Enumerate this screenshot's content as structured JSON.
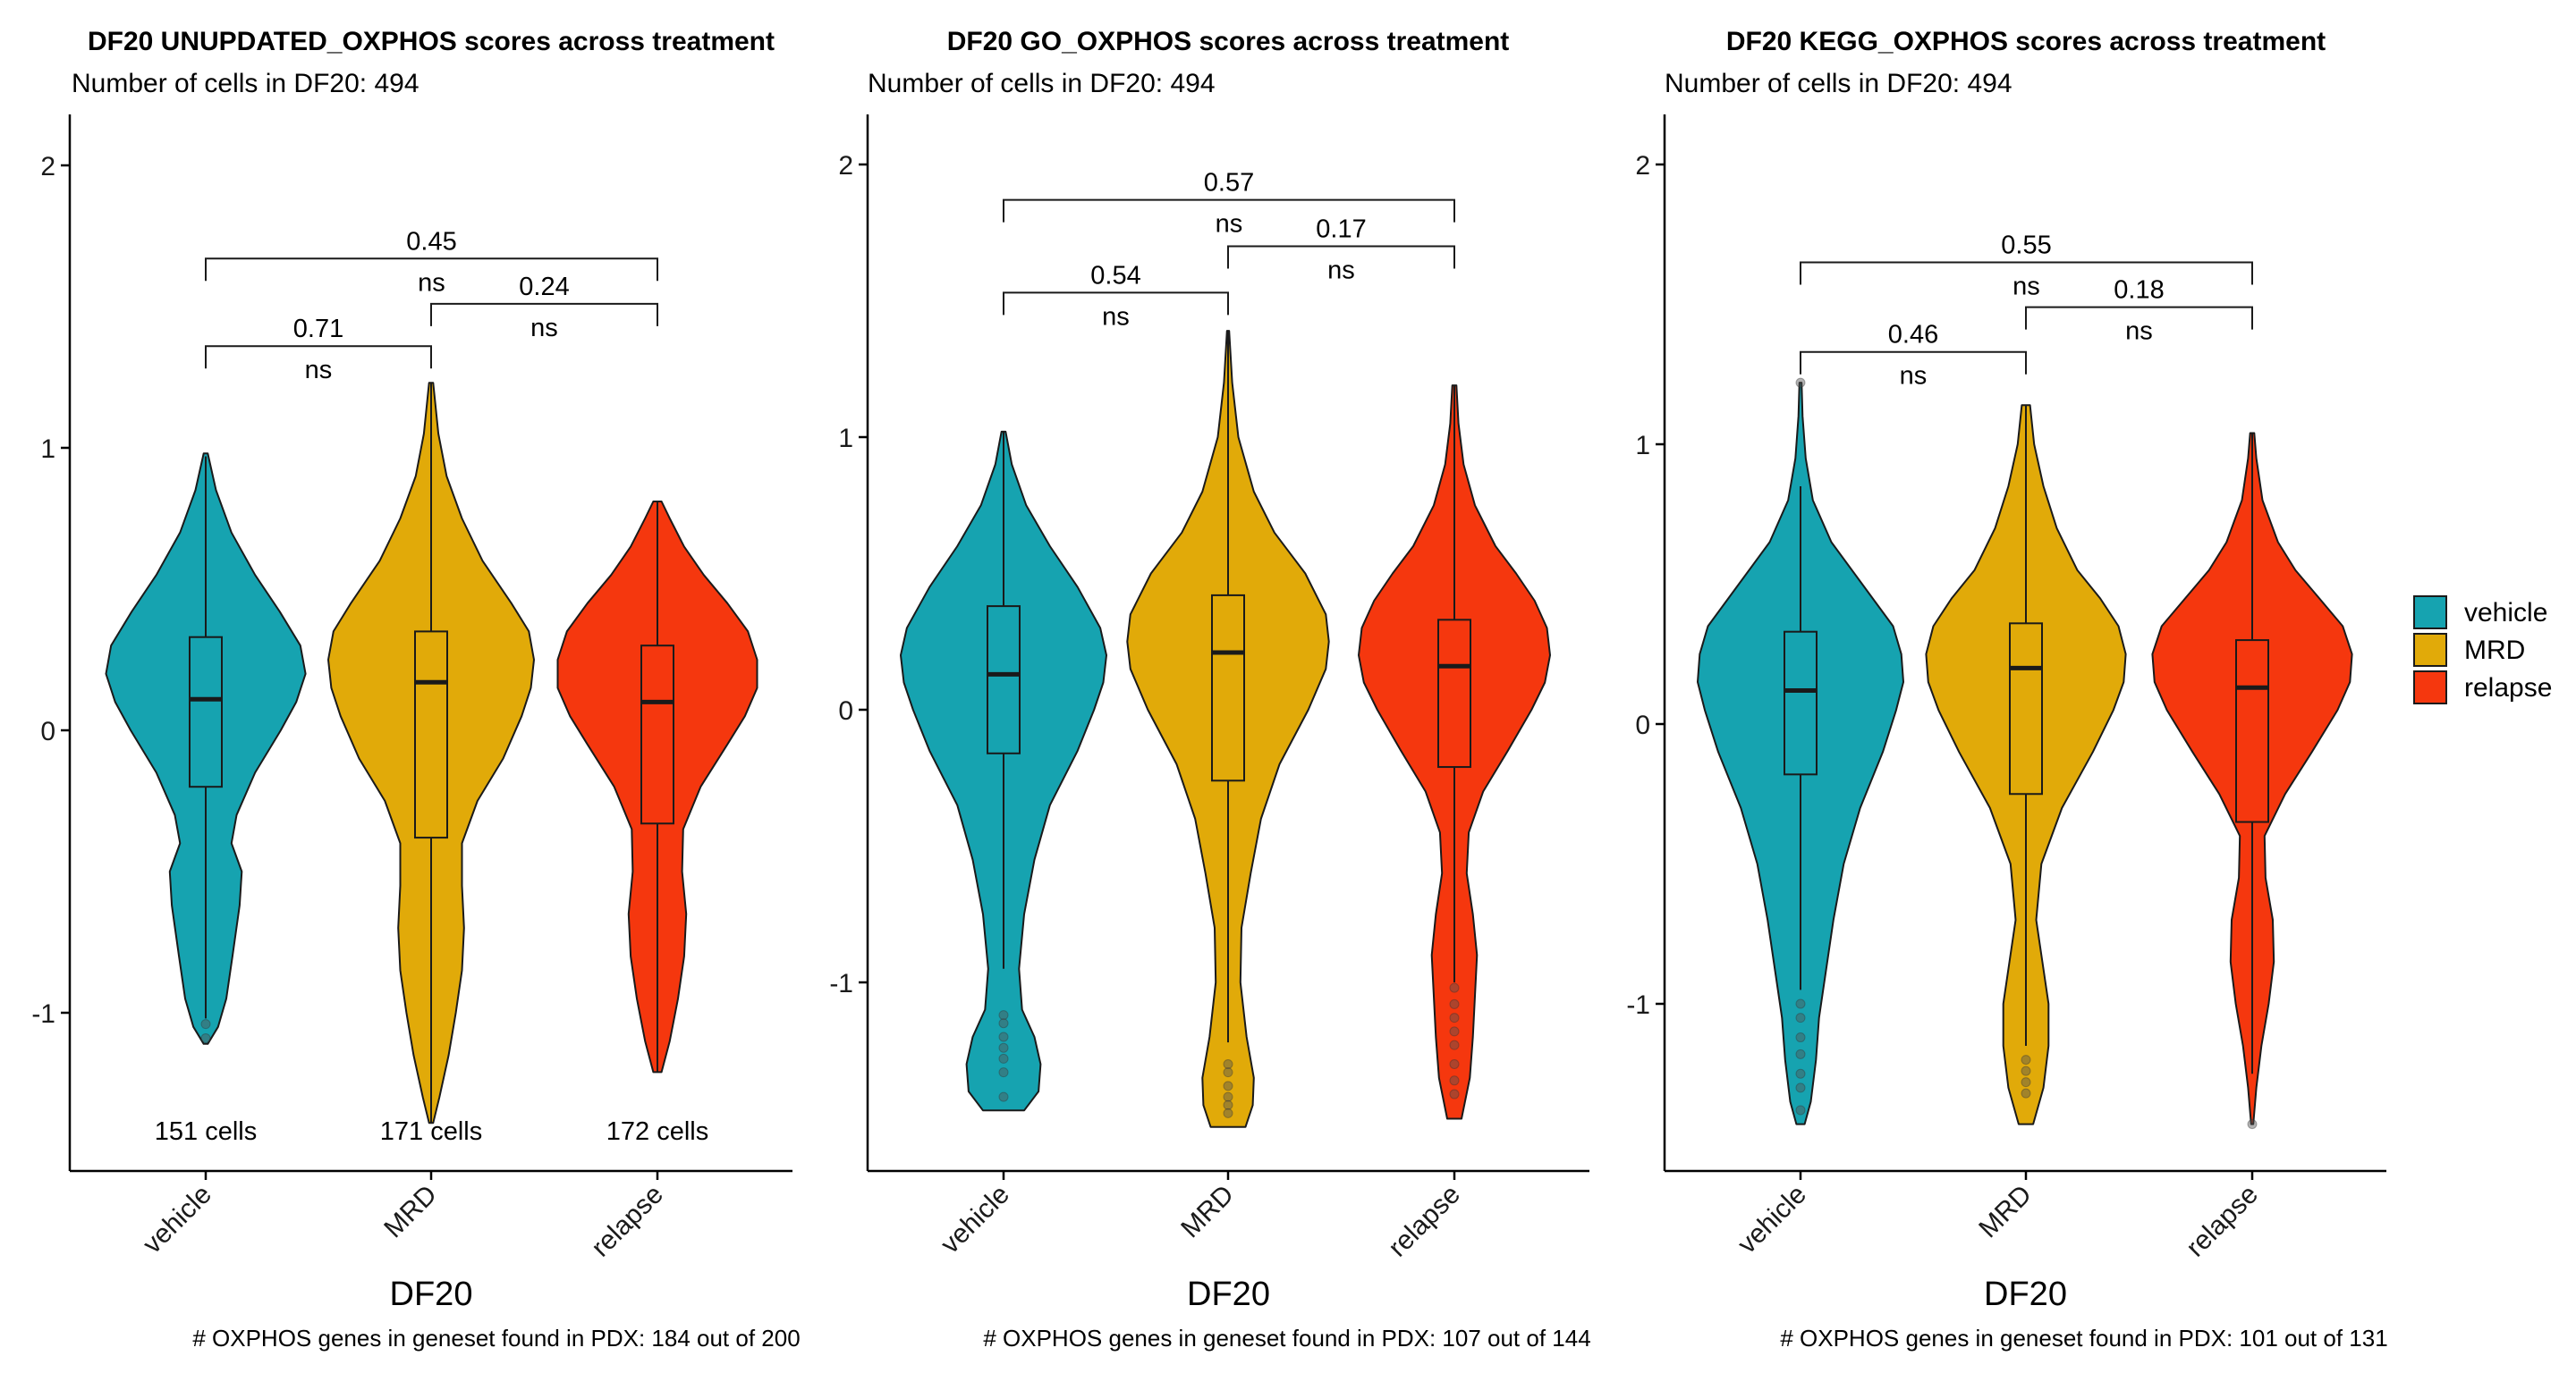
{
  "chart_data": [
    {
      "type": "violin",
      "title": "DF20 UNUPDATED_OXPHOS scores across treatment",
      "subtitle": "Number of cells in DF20: 494",
      "xlabel": "DF20",
      "ylabel": "",
      "caption": "# OXPHOS genes in geneset found in PDX: 184 out of 200",
      "ylim": [
        -1.55,
        2.2
      ],
      "yticks": [
        -1,
        0,
        1,
        2
      ],
      "categories": [
        "vehicle",
        "MRD",
        "relapse"
      ],
      "cell_labels": [
        "151 cells",
        "171 cells",
        "172 cells"
      ],
      "groups": [
        {
          "name": "vehicle",
          "min": -1.11,
          "max": 0.98,
          "q1": -0.2,
          "median": 0.11,
          "q3": 0.33,
          "wlo": -1.02,
          "whi": 0.97,
          "outliers": [
            -1.04,
            -1.09
          ],
          "density": [
            [
              -1.11,
              0.02
            ],
            [
              -1.05,
              0.12
            ],
            [
              -0.95,
              0.2
            ],
            [
              -0.8,
              0.26
            ],
            [
              -0.62,
              0.33
            ],
            [
              -0.5,
              0.35
            ],
            [
              -0.4,
              0.25
            ],
            [
              -0.3,
              0.3
            ],
            [
              -0.15,
              0.48
            ],
            [
              0.0,
              0.73
            ],
            [
              0.1,
              0.88
            ],
            [
              0.2,
              0.97
            ],
            [
              0.3,
              0.92
            ],
            [
              0.42,
              0.72
            ],
            [
              0.55,
              0.48
            ],
            [
              0.7,
              0.25
            ],
            [
              0.85,
              0.1
            ],
            [
              0.98,
              0.02
            ]
          ]
        },
        {
          "name": "MRD",
          "min": -1.39,
          "max": 1.23,
          "q1": -0.38,
          "median": 0.17,
          "q3": 0.35,
          "wlo": -1.39,
          "whi": 1.23,
          "outliers": [],
          "density": [
            [
              -1.39,
              0.02
            ],
            [
              -1.3,
              0.08
            ],
            [
              -1.15,
              0.17
            ],
            [
              -1.0,
              0.24
            ],
            [
              -0.85,
              0.3
            ],
            [
              -0.7,
              0.32
            ],
            [
              -0.55,
              0.3
            ],
            [
              -0.4,
              0.3
            ],
            [
              -0.25,
              0.45
            ],
            [
              -0.1,
              0.7
            ],
            [
              0.05,
              0.88
            ],
            [
              0.15,
              0.97
            ],
            [
              0.25,
              1.0
            ],
            [
              0.35,
              0.95
            ],
            [
              0.45,
              0.78
            ],
            [
              0.6,
              0.5
            ],
            [
              0.75,
              0.3
            ],
            [
              0.9,
              0.15
            ],
            [
              1.05,
              0.07
            ],
            [
              1.23,
              0.02
            ]
          ]
        },
        {
          "name": "relapse",
          "min": -1.21,
          "max": 0.81,
          "q1": -0.33,
          "median": 0.1,
          "q3": 0.3,
          "wlo": -1.21,
          "whi": 0.81,
          "outliers": [],
          "density": [
            [
              -1.21,
              0.04
            ],
            [
              -1.1,
              0.12
            ],
            [
              -0.95,
              0.2
            ],
            [
              -0.8,
              0.26
            ],
            [
              -0.65,
              0.28
            ],
            [
              -0.5,
              0.24
            ],
            [
              -0.35,
              0.25
            ],
            [
              -0.2,
              0.42
            ],
            [
              -0.05,
              0.68
            ],
            [
              0.05,
              0.85
            ],
            [
              0.15,
              0.97
            ],
            [
              0.25,
              0.97
            ],
            [
              0.35,
              0.88
            ],
            [
              0.45,
              0.68
            ],
            [
              0.55,
              0.45
            ],
            [
              0.65,
              0.26
            ],
            [
              0.75,
              0.12
            ],
            [
              0.81,
              0.04
            ]
          ]
        }
      ],
      "brackets": [
        {
          "from": 0,
          "to": 2,
          "y": 1.67,
          "p": "0.45",
          "sig": "ns"
        },
        {
          "from": 1,
          "to": 2,
          "y": 1.51,
          "p": "0.24",
          "sig": "ns"
        },
        {
          "from": 0,
          "to": 1,
          "y": 1.36,
          "p": "0.71",
          "sig": "ns"
        }
      ]
    },
    {
      "type": "violin",
      "title": "DF20 GO_OXPHOS scores across treatment",
      "subtitle": "Number of cells in DF20: 494",
      "xlabel": "DF20",
      "ylabel": "",
      "caption": "# OXPHOS genes in geneset found in PDX: 107 out of 144",
      "ylim": [
        -1.55,
        2.2
      ],
      "yticks": [
        -1,
        0,
        1,
        2
      ],
      "categories": [
        "vehicle",
        "MRD",
        "relapse"
      ],
      "cell_labels": [],
      "groups": [
        {
          "name": "vehicle",
          "min": -1.47,
          "max": 1.02,
          "q1": -0.16,
          "median": 0.13,
          "q3": 0.38,
          "wlo": -0.95,
          "whi": 1.02,
          "outliers": [
            -1.12,
            -1.15,
            -1.2,
            -1.24,
            -1.28,
            -1.33,
            -1.42
          ],
          "density": [
            [
              -1.47,
              0.2
            ],
            [
              -1.4,
              0.34
            ],
            [
              -1.3,
              0.36
            ],
            [
              -1.2,
              0.3
            ],
            [
              -1.1,
              0.18
            ],
            [
              -0.95,
              0.15
            ],
            [
              -0.75,
              0.2
            ],
            [
              -0.55,
              0.3
            ],
            [
              -0.35,
              0.45
            ],
            [
              -0.15,
              0.72
            ],
            [
              0.0,
              0.88
            ],
            [
              0.1,
              0.97
            ],
            [
              0.2,
              1.0
            ],
            [
              0.3,
              0.94
            ],
            [
              0.45,
              0.72
            ],
            [
              0.6,
              0.45
            ],
            [
              0.75,
              0.22
            ],
            [
              0.9,
              0.08
            ],
            [
              1.02,
              0.02
            ]
          ]
        },
        {
          "name": "MRD",
          "min": -1.53,
          "max": 1.39,
          "q1": -0.26,
          "median": 0.21,
          "q3": 0.42,
          "wlo": -1.22,
          "whi": 1.39,
          "outliers": [
            -1.3,
            -1.33,
            -1.38,
            -1.42,
            -1.45,
            -1.48
          ],
          "density": [
            [
              -1.53,
              0.17
            ],
            [
              -1.45,
              0.24
            ],
            [
              -1.35,
              0.25
            ],
            [
              -1.2,
              0.18
            ],
            [
              -1.0,
              0.12
            ],
            [
              -0.8,
              0.13
            ],
            [
              -0.6,
              0.22
            ],
            [
              -0.4,
              0.32
            ],
            [
              -0.2,
              0.5
            ],
            [
              0.0,
              0.78
            ],
            [
              0.15,
              0.95
            ],
            [
              0.25,
              0.98
            ],
            [
              0.35,
              0.95
            ],
            [
              0.5,
              0.75
            ],
            [
              0.65,
              0.45
            ],
            [
              0.8,
              0.25
            ],
            [
              1.0,
              0.1
            ],
            [
              1.2,
              0.04
            ],
            [
              1.39,
              0.01
            ]
          ]
        },
        {
          "name": "relapse",
          "min": -1.5,
          "max": 1.19,
          "q1": -0.21,
          "median": 0.16,
          "q3": 0.33,
          "wlo": -1.0,
          "whi": 1.19,
          "outliers": [
            -1.02,
            -1.08,
            -1.13,
            -1.18,
            -1.23,
            -1.3,
            -1.36,
            -1.41
          ],
          "density": [
            [
              -1.5,
              0.07
            ],
            [
              -1.35,
              0.15
            ],
            [
              -1.2,
              0.18
            ],
            [
              -1.05,
              0.2
            ],
            [
              -0.9,
              0.22
            ],
            [
              -0.75,
              0.18
            ],
            [
              -0.6,
              0.12
            ],
            [
              -0.45,
              0.14
            ],
            [
              -0.3,
              0.28
            ],
            [
              -0.15,
              0.52
            ],
            [
              0.0,
              0.75
            ],
            [
              0.1,
              0.88
            ],
            [
              0.2,
              0.93
            ],
            [
              0.3,
              0.9
            ],
            [
              0.4,
              0.78
            ],
            [
              0.5,
              0.6
            ],
            [
              0.6,
              0.4
            ],
            [
              0.75,
              0.2
            ],
            [
              0.9,
              0.09
            ],
            [
              1.05,
              0.04
            ],
            [
              1.19,
              0.02
            ]
          ]
        }
      ],
      "brackets": [
        {
          "from": 0,
          "to": 2,
          "y": 1.87,
          "p": "0.57",
          "sig": "ns"
        },
        {
          "from": 1,
          "to": 2,
          "y": 1.7,
          "p": "0.17",
          "sig": "ns"
        },
        {
          "from": 0,
          "to": 1,
          "y": 1.53,
          "p": "0.54",
          "sig": "ns"
        }
      ]
    },
    {
      "type": "violin",
      "title": "DF20 KEGG_OXPHOS scores across treatment",
      "subtitle": "Number of cells in DF20: 494",
      "xlabel": "DF20",
      "ylabel": "",
      "caption": "# OXPHOS genes in geneset found in PDX: 101 out of 131",
      "ylim": [
        -1.55,
        2.2
      ],
      "yticks": [
        -1,
        0,
        1,
        2
      ],
      "categories": [
        "vehicle",
        "MRD",
        "relapse"
      ],
      "cell_labels": [],
      "groups": [
        {
          "name": "vehicle",
          "min": -1.43,
          "max": 1.22,
          "q1": -0.18,
          "median": 0.12,
          "q3": 0.33,
          "wlo": -0.95,
          "whi": 0.85,
          "outliers": [
            -1.0,
            -1.05,
            -1.12,
            -1.18,
            -1.25,
            -1.3,
            -1.38,
            1.22
          ],
          "density": [
            [
              -1.43,
              0.04
            ],
            [
              -1.35,
              0.1
            ],
            [
              -1.2,
              0.15
            ],
            [
              -1.05,
              0.18
            ],
            [
              -0.9,
              0.24
            ],
            [
              -0.7,
              0.32
            ],
            [
              -0.5,
              0.42
            ],
            [
              -0.3,
              0.58
            ],
            [
              -0.1,
              0.8
            ],
            [
              0.05,
              0.93
            ],
            [
              0.15,
              1.0
            ],
            [
              0.25,
              0.98
            ],
            [
              0.35,
              0.9
            ],
            [
              0.5,
              0.6
            ],
            [
              0.65,
              0.3
            ],
            [
              0.8,
              0.12
            ],
            [
              0.95,
              0.05
            ],
            [
              1.1,
              0.02
            ],
            [
              1.22,
              0.01
            ]
          ]
        },
        {
          "name": "MRD",
          "min": -1.43,
          "max": 1.14,
          "q1": -0.25,
          "median": 0.2,
          "q3": 0.36,
          "wlo": -1.15,
          "whi": 1.14,
          "outliers": [
            -1.2,
            -1.24,
            -1.28,
            -1.32
          ],
          "density": [
            [
              -1.43,
              0.07
            ],
            [
              -1.3,
              0.17
            ],
            [
              -1.15,
              0.22
            ],
            [
              -1.0,
              0.22
            ],
            [
              -0.85,
              0.16
            ],
            [
              -0.7,
              0.1
            ],
            [
              -0.5,
              0.15
            ],
            [
              -0.3,
              0.35
            ],
            [
              -0.1,
              0.65
            ],
            [
              0.05,
              0.85
            ],
            [
              0.15,
              0.95
            ],
            [
              0.25,
              0.97
            ],
            [
              0.35,
              0.9
            ],
            [
              0.45,
              0.72
            ],
            [
              0.55,
              0.5
            ],
            [
              0.7,
              0.3
            ],
            [
              0.85,
              0.17
            ],
            [
              1.0,
              0.08
            ],
            [
              1.14,
              0.04
            ]
          ]
        },
        {
          "name": "relapse",
          "min": -1.43,
          "max": 1.04,
          "q1": -0.35,
          "median": 0.13,
          "q3": 0.3,
          "wlo": -1.25,
          "whi": 1.04,
          "outliers": [
            -1.43
          ],
          "density": [
            [
              -1.43,
              0.01
            ],
            [
              -1.3,
              0.04
            ],
            [
              -1.15,
              0.09
            ],
            [
              -1.0,
              0.16
            ],
            [
              -0.85,
              0.21
            ],
            [
              -0.7,
              0.2
            ],
            [
              -0.55,
              0.13
            ],
            [
              -0.4,
              0.12
            ],
            [
              -0.25,
              0.32
            ],
            [
              -0.1,
              0.58
            ],
            [
              0.05,
              0.83
            ],
            [
              0.15,
              0.95
            ],
            [
              0.25,
              0.97
            ],
            [
              0.35,
              0.88
            ],
            [
              0.45,
              0.65
            ],
            [
              0.55,
              0.42
            ],
            [
              0.65,
              0.25
            ],
            [
              0.8,
              0.1
            ],
            [
              0.95,
              0.04
            ],
            [
              1.04,
              0.02
            ]
          ]
        }
      ],
      "brackets": [
        {
          "from": 0,
          "to": 2,
          "y": 1.65,
          "p": "0.55",
          "sig": "ns"
        },
        {
          "from": 1,
          "to": 2,
          "y": 1.49,
          "p": "0.18",
          "sig": "ns"
        },
        {
          "from": 0,
          "to": 1,
          "y": 1.33,
          "p": "0.46",
          "sig": "ns"
        }
      ]
    }
  ],
  "legend": {
    "position": "right",
    "items": [
      {
        "label": "vehicle",
        "color": "#16A3B0"
      },
      {
        "label": "MRD",
        "color": "#E1AA09"
      },
      {
        "label": "relapse",
        "color": "#F5370E"
      }
    ]
  },
  "colors": {
    "vehicle": "#16A3B0",
    "MRD": "#E1AA09",
    "relapse": "#F5370E",
    "outline": "#1a1a1a"
  }
}
